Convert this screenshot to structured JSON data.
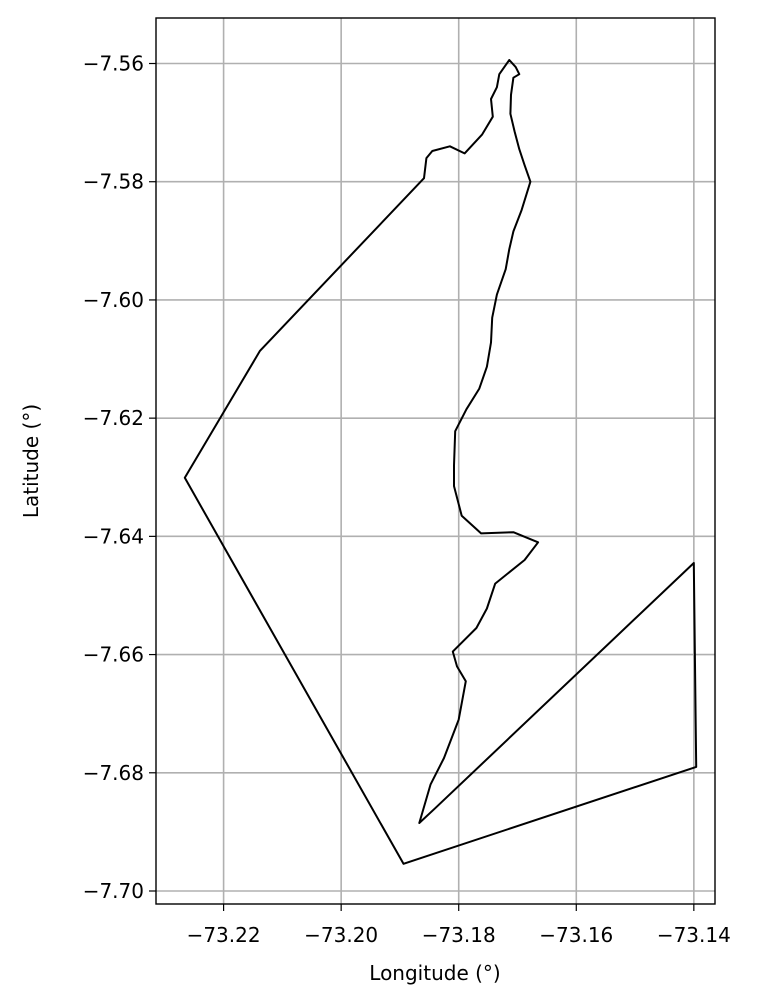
{
  "chart_data": {
    "type": "line",
    "title": "",
    "xlabel": "Longitude (°)",
    "ylabel": "Latitude (°)",
    "xlim": [
      -73.2315,
      -73.1364
    ],
    "ylim": [
      -7.7022,
      -7.5523
    ],
    "grid": true,
    "x_ticks": [
      -73.22,
      -73.2,
      -73.18,
      -73.16,
      -73.14
    ],
    "x_tick_labels": [
      "−73.22",
      "−73.20",
      "−73.18",
      "−73.16",
      "−73.14"
    ],
    "y_ticks": [
      -7.56,
      -7.58,
      -7.6,
      -7.62,
      -7.64,
      -7.66,
      -7.68,
      -7.7
    ],
    "y_tick_labels": [
      "−7.56",
      "−7.58",
      "−7.60",
      "−7.62",
      "−7.64",
      "−7.66",
      "−7.68",
      "−7.70"
    ],
    "series": [
      {
        "color": "#000000",
        "points": [
          [
            -73.1714,
            -7.5594
          ],
          [
            -73.1703,
            -7.5606
          ],
          [
            -73.1697,
            -7.5618
          ],
          [
            -73.1707,
            -7.5624
          ],
          [
            -73.1711,
            -7.5653
          ],
          [
            -73.1712,
            -7.5685
          ],
          [
            -73.1705,
            -7.5715
          ],
          [
            -73.1697,
            -7.5745
          ],
          [
            -73.1688,
            -7.5772
          ],
          [
            -73.1678,
            -7.58
          ],
          [
            -73.1693,
            -7.5848
          ],
          [
            -73.1707,
            -7.5884
          ],
          [
            -73.1714,
            -7.5914
          ],
          [
            -73.172,
            -7.5948
          ],
          [
            -73.1735,
            -7.5991
          ],
          [
            -73.1743,
            -7.603
          ],
          [
            -73.1745,
            -7.6072
          ],
          [
            -73.1752,
            -7.6113
          ],
          [
            -73.1765,
            -7.615
          ],
          [
            -73.1787,
            -7.6185
          ],
          [
            -73.1806,
            -7.6222
          ],
          [
            -73.1808,
            -7.628
          ],
          [
            -73.1808,
            -7.6315
          ],
          [
            -73.1795,
            -7.6365
          ],
          [
            -73.1762,
            -7.6395
          ],
          [
            -73.1707,
            -7.6393
          ],
          [
            -73.1665,
            -7.641
          ],
          [
            -73.1688,
            -7.644
          ],
          [
            -73.1738,
            -7.648
          ],
          [
            -73.1752,
            -7.6522
          ],
          [
            -73.177,
            -7.6555
          ],
          [
            -73.181,
            -7.6595
          ],
          [
            -73.1803,
            -7.662
          ],
          [
            -73.1788,
            -7.6645
          ],
          [
            -73.18,
            -7.671
          ],
          [
            -73.1825,
            -7.6775
          ],
          [
            -73.1848,
            -7.682
          ],
          [
            -73.1867,
            -7.6885
          ],
          [
            -73.184,
            -7.686
          ],
          [
            -73.14,
            -7.6445
          ],
          [
            -73.1396,
            -7.679
          ],
          [
            -73.1894,
            -7.6954
          ],
          [
            -73.2266,
            -7.6301
          ],
          [
            -73.2138,
            -7.6086
          ],
          [
            -73.1859,
            -7.5794
          ],
          [
            -73.1855,
            -7.576
          ],
          [
            -73.1845,
            -7.5748
          ],
          [
            -73.1815,
            -7.574
          ],
          [
            -73.179,
            -7.5752
          ],
          [
            -73.176,
            -7.572
          ],
          [
            -73.1742,
            -7.569
          ],
          [
            -73.1745,
            -7.566
          ],
          [
            -73.1735,
            -7.564
          ],
          [
            -73.1731,
            -7.5618
          ],
          [
            -73.1714,
            -7.5594
          ]
        ]
      }
    ]
  }
}
